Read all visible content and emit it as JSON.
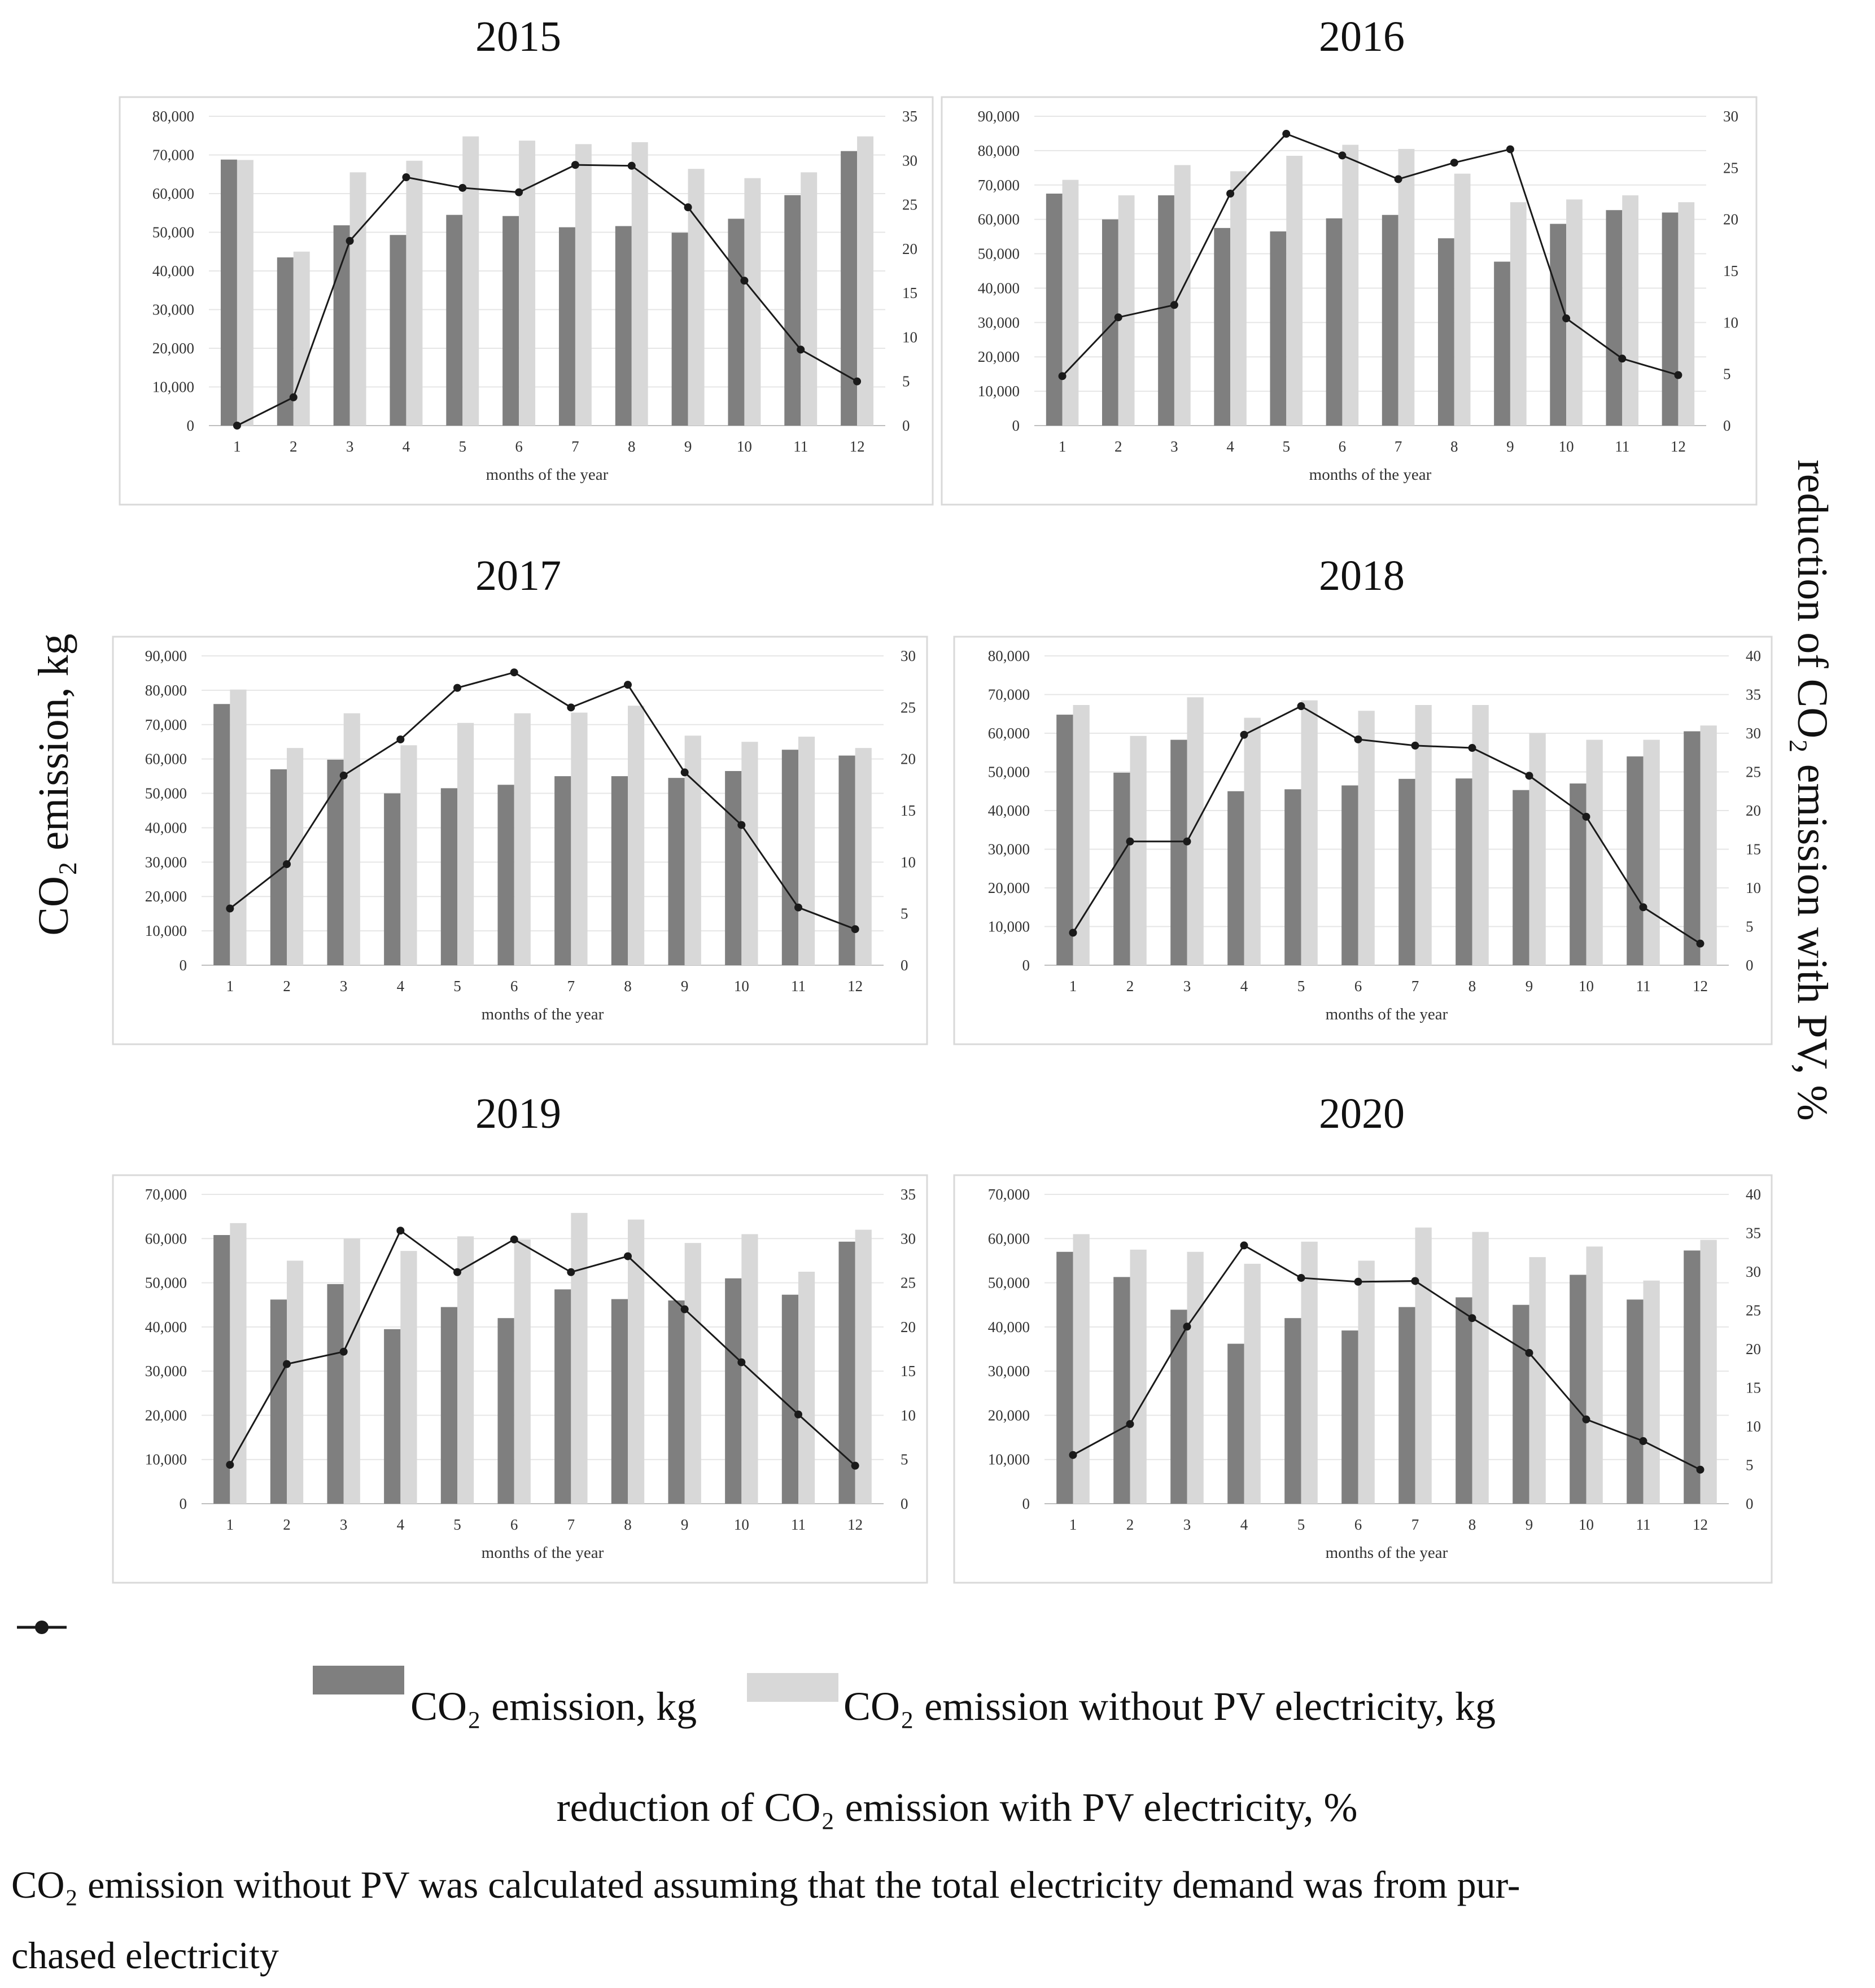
{
  "figure": {
    "left_axis_title": "CO₂ emission, kg",
    "right_axis_title": "reduction of CO₂ emission with PV, %",
    "legend": {
      "series1": "CO₂ emission, kg",
      "series2": "CO₂ emission without PV electricity, kg",
      "series3": "reduction of CO₂ emission with PV electricity, %"
    },
    "note": {
      "line1": "CO₂ emission without PV was calculated assuming that the total electricity demand was from pur-",
      "line2": "chased electricity"
    },
    "colors": {
      "bar_dark": "#7f7f7f",
      "bar_light": "#d8d8d8",
      "line": "#1a1a1a"
    }
  },
  "chart_data": [
    {
      "type": "bar",
      "title": "2015",
      "xlabel": "months of the year",
      "categories": [
        "1",
        "2",
        "3",
        "4",
        "5",
        "6",
        "7",
        "8",
        "9",
        "10",
        "11",
        "12"
      ],
      "ylim": [
        0,
        80000
      ],
      "yticks": [
        "0",
        "10,000",
        "20,000",
        "30,000",
        "40,000",
        "50,000",
        "60,000",
        "70,000",
        "80,000"
      ],
      "y2lim": [
        0,
        35
      ],
      "y2ticks": [
        "0",
        "5",
        "10",
        "15",
        "20",
        "25",
        "30",
        "35"
      ],
      "series": [
        {
          "name": "CO₂ emission, kg",
          "axis": "left",
          "kind": "bar",
          "values": [
            68800,
            43500,
            51800,
            49300,
            54500,
            54200,
            51300,
            51600,
            49900,
            53500,
            59600,
            71000
          ]
        },
        {
          "name": "CO₂ emission without PV electricity, kg",
          "axis": "left",
          "kind": "bar",
          "values": [
            68700,
            45000,
            65500,
            68500,
            74800,
            73700,
            72800,
            73300,
            66400,
            64000,
            65500,
            74800
          ]
        },
        {
          "name": "reduction of CO₂ emission with PV electricity, %",
          "axis": "right",
          "kind": "line",
          "values": [
            0,
            3.2,
            20.9,
            28.1,
            26.9,
            26.4,
            29.5,
            29.4,
            24.7,
            16.4,
            8.6,
            5.0
          ]
        }
      ]
    },
    {
      "type": "bar",
      "title": "2016",
      "xlabel": "months of the year",
      "categories": [
        "1",
        "2",
        "3",
        "4",
        "5",
        "6",
        "7",
        "8",
        "9",
        "10",
        "11",
        "12"
      ],
      "ylim": [
        0,
        90000
      ],
      "yticks": [
        "0",
        "10,000",
        "20,000",
        "30,000",
        "40,000",
        "50,000",
        "60,000",
        "70,000",
        "80,000",
        "90,000"
      ],
      "y2lim": [
        0,
        30
      ],
      "y2ticks": [
        "0",
        "5",
        "10",
        "15",
        "20",
        "25",
        "30"
      ],
      "series": [
        {
          "name": "CO₂ emission, kg",
          "axis": "left",
          "kind": "bar",
          "values": [
            67500,
            60000,
            67000,
            57500,
            56500,
            60300,
            61300,
            54500,
            47700,
            58700,
            62700,
            62000
          ]
        },
        {
          "name": "CO₂ emission without PV electricity, kg",
          "axis": "left",
          "kind": "bar",
          "values": [
            71500,
            67000,
            75800,
            74000,
            78500,
            81700,
            80500,
            73300,
            65000,
            65800,
            67000,
            65000
          ]
        },
        {
          "name": "reduction of CO₂ emission with PV electricity, %",
          "axis": "right",
          "kind": "line",
          "values": [
            4.8,
            10.5,
            11.7,
            22.5,
            28.3,
            26.2,
            23.9,
            25.5,
            26.8,
            10.4,
            6.5,
            4.9
          ]
        }
      ]
    },
    {
      "type": "bar",
      "title": "2017",
      "xlabel": "months of the year",
      "categories": [
        "1",
        "2",
        "3",
        "4",
        "5",
        "6",
        "7",
        "8",
        "9",
        "10",
        "11",
        "12"
      ],
      "ylim": [
        0,
        90000
      ],
      "yticks": [
        "0",
        "10,000",
        "20,000",
        "30,000",
        "40,000",
        "50,000",
        "60,000",
        "70,000",
        "80,000",
        "90,000"
      ],
      "y2lim": [
        0,
        30
      ],
      "y2ticks": [
        "0",
        "5",
        "10",
        "15",
        "20",
        "25",
        "30"
      ],
      "series": [
        {
          "name": "CO₂ emission, kg",
          "axis": "left",
          "kind": "bar",
          "values": [
            76000,
            57000,
            59800,
            50000,
            51500,
            52500,
            55000,
            55000,
            54500,
            56500,
            62700,
            61000
          ]
        },
        {
          "name": "CO₂ emission without PV electricity, kg",
          "axis": "left",
          "kind": "bar",
          "values": [
            80200,
            63200,
            73300,
            64000,
            70500,
            73300,
            73500,
            75500,
            66800,
            65000,
            66500,
            63200
          ]
        },
        {
          "name": "reduction of CO₂ emission with PV electricity, %",
          "axis": "right",
          "kind": "line",
          "values": [
            5.5,
            9.8,
            18.4,
            21.9,
            26.9,
            28.4,
            25.0,
            27.2,
            18.7,
            13.6,
            5.6,
            3.5
          ]
        }
      ]
    },
    {
      "type": "bar",
      "title": "2018",
      "xlabel": "months of the year",
      "categories": [
        "1",
        "2",
        "3",
        "4",
        "5",
        "6",
        "7",
        "8",
        "9",
        "10",
        "11",
        "12"
      ],
      "ylim": [
        0,
        80000
      ],
      "yticks": [
        "0",
        "10,000",
        "20,000",
        "30,000",
        "40,000",
        "50,000",
        "60,000",
        "70,000",
        "80,000"
      ],
      "y2lim": [
        0,
        40
      ],
      "y2ticks": [
        "0",
        "5",
        "10",
        "15",
        "20",
        "25",
        "30",
        "35",
        "40"
      ],
      "series": [
        {
          "name": "CO₂ emission, kg",
          "axis": "left",
          "kind": "bar",
          "values": [
            64800,
            49800,
            58300,
            45000,
            45500,
            46500,
            48200,
            48300,
            45300,
            47000,
            54000,
            60500
          ]
        },
        {
          "name": "CO₂ emission without PV electricity, kg",
          "axis": "left",
          "kind": "bar",
          "values": [
            67300,
            59300,
            69300,
            64000,
            68500,
            65800,
            67300,
            67300,
            60000,
            58300,
            58300,
            62000
          ]
        },
        {
          "name": "reduction of CO₂ emission with PV electricity, %",
          "axis": "right",
          "kind": "line",
          "values": [
            4.2,
            16.0,
            16.0,
            29.8,
            33.5,
            29.2,
            28.4,
            28.1,
            24.5,
            19.2,
            7.5,
            2.8
          ]
        }
      ]
    },
    {
      "type": "bar",
      "title": "2019",
      "xlabel": "months of the year",
      "categories": [
        "1",
        "2",
        "3",
        "4",
        "5",
        "6",
        "7",
        "8",
        "9",
        "10",
        "11",
        "12"
      ],
      "ylim": [
        0,
        70000
      ],
      "yticks": [
        "0",
        "10,000",
        "20,000",
        "30,000",
        "40,000",
        "50,000",
        "60,000",
        "70,000"
      ],
      "y2lim": [
        0,
        35
      ],
      "y2ticks": [
        "0",
        "5",
        "10",
        "15",
        "20",
        "25",
        "30",
        "35"
      ],
      "series": [
        {
          "name": "CO₂ emission, kg",
          "axis": "left",
          "kind": "bar",
          "values": [
            60800,
            46200,
            49700,
            39500,
            44500,
            42000,
            48500,
            46300,
            46000,
            51000,
            47300,
            59300
          ]
        },
        {
          "name": "CO₂ emission without PV electricity, kg",
          "axis": "left",
          "kind": "bar",
          "values": [
            63500,
            55000,
            60000,
            57200,
            60500,
            59800,
            65800,
            64300,
            59000,
            61000,
            52500,
            62000
          ]
        },
        {
          "name": "reduction of CO₂ emission with PV electricity, %",
          "axis": "right",
          "kind": "line",
          "values": [
            4.4,
            15.8,
            17.2,
            30.9,
            26.2,
            29.9,
            26.2,
            28.0,
            22.0,
            16.0,
            10.1,
            4.3
          ]
        }
      ]
    },
    {
      "type": "bar",
      "title": "2020",
      "xlabel": "months of the year",
      "categories": [
        "1",
        "2",
        "3",
        "4",
        "5",
        "6",
        "7",
        "8",
        "9",
        "10",
        "11",
        "12"
      ],
      "ylim": [
        0,
        70000
      ],
      "yticks": [
        "0",
        "10,000",
        "20,000",
        "30,000",
        "40,000",
        "50,000",
        "60,000",
        "70,000"
      ],
      "y2lim": [
        0,
        40
      ],
      "y2ticks": [
        "0",
        "5",
        "10",
        "15",
        "20",
        "25",
        "30",
        "35",
        "40"
      ],
      "series": [
        {
          "name": "CO₂ emission, kg",
          "axis": "left",
          "kind": "bar",
          "values": [
            57000,
            51300,
            43900,
            36200,
            42000,
            39200,
            44500,
            46700,
            45000,
            51800,
            46200,
            57300
          ]
        },
        {
          "name": "CO₂ emission without PV electricity, kg",
          "axis": "left",
          "kind": "bar",
          "values": [
            61000,
            57500,
            57000,
            54300,
            59300,
            55000,
            62500,
            61500,
            55800,
            58200,
            50500,
            59700
          ]
        },
        {
          "name": "reduction of CO₂ emission with PV electricity, %",
          "axis": "right",
          "kind": "line",
          "values": [
            6.3,
            10.3,
            22.9,
            33.4,
            29.2,
            28.7,
            28.8,
            24.0,
            19.5,
            10.9,
            8.1,
            4.4
          ]
        }
      ]
    }
  ]
}
